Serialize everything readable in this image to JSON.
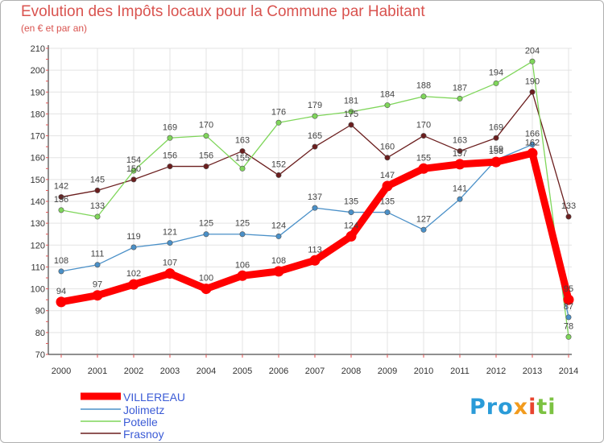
{
  "title": "Evolution des Impôts locaux pour la Commune par Habitant",
  "subtitle": "(en € et par an)",
  "logo": {
    "parts": [
      "Pro",
      "x",
      "i",
      "ti"
    ]
  },
  "chart_data": {
    "type": "line",
    "categories": [
      "2000",
      "2001",
      "2002",
      "2003",
      "2004",
      "2005",
      "2006",
      "2007",
      "2008",
      "2009",
      "2010",
      "2011",
      "2012",
      "2013",
      "2014"
    ],
    "ylim": [
      70,
      210
    ],
    "yticks": [
      70,
      80,
      90,
      100,
      110,
      120,
      130,
      140,
      150,
      160,
      170,
      180,
      190,
      200,
      210
    ],
    "grid": true,
    "series": [
      {
        "name": "VILLEREAU",
        "color": "#ff0000",
        "values": [
          94,
          97,
          102,
          107,
          100,
          106,
          108,
          113,
          124,
          147,
          155,
          157,
          158,
          162,
          95
        ],
        "labels": [
          "94",
          "97",
          "102",
          "107",
          "100",
          "106",
          "108",
          "113",
          "124",
          "147",
          "155",
          "157",
          "158",
          "162",
          "95"
        ]
      },
      {
        "name": "Jolimetz",
        "color": "#4a90c8",
        "values": [
          108,
          111,
          119,
          121,
          125,
          125,
          124,
          137,
          135,
          135,
          127,
          141,
          159,
          166,
          87
        ],
        "labels": [
          "108",
          "111",
          "119",
          "121",
          "125",
          "125",
          "124",
          "137",
          "135",
          "135",
          "127",
          "141",
          "159",
          "166",
          "87"
        ]
      },
      {
        "name": "Potelle",
        "color": "#7fd65a",
        "values": [
          136,
          133,
          154,
          169,
          170,
          155,
          176,
          179,
          181,
          184,
          188,
          187,
          194,
          204,
          78
        ],
        "labels": [
          "136",
          "133",
          "154",
          "169",
          "170",
          "155",
          "176",
          "179",
          "181",
          "184",
          "188",
          "187",
          "194",
          "204",
          "78"
        ]
      },
      {
        "name": "Frasnoy",
        "color": "#6b1e1e",
        "values": [
          142,
          145,
          150,
          156,
          156,
          163,
          152,
          165,
          175,
          160,
          170,
          163,
          169,
          190,
          133
        ],
        "labels": [
          "142",
          "145",
          "150",
          "156",
          "156",
          "163",
          "152",
          "165",
          "175",
          "160",
          "170",
          "163",
          "169",
          "190",
          "133"
        ]
      }
    ]
  }
}
